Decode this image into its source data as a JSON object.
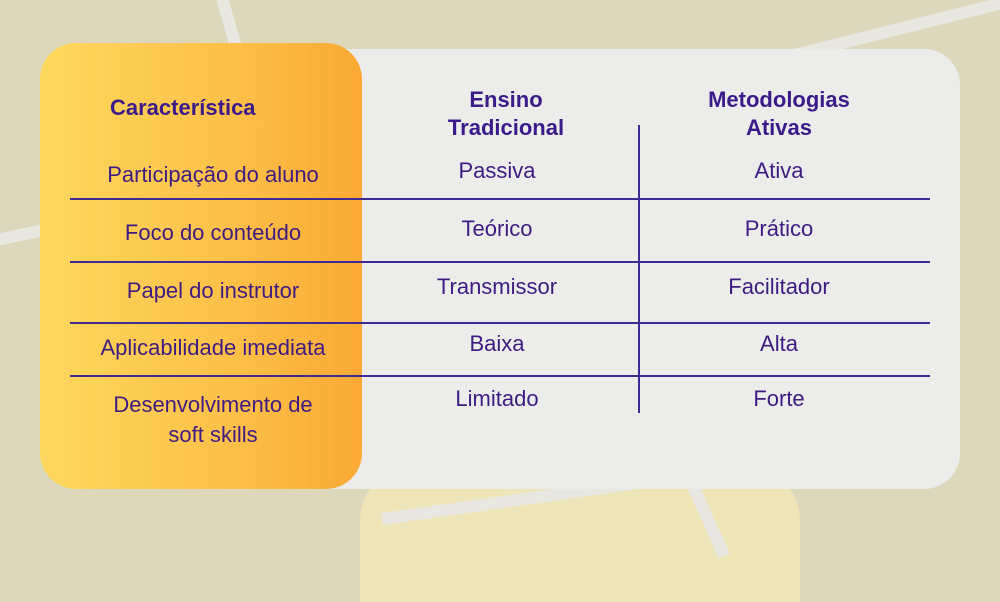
{
  "chart_data": {
    "type": "table",
    "columns": [
      "Característica",
      "Ensino Tradicional",
      "Metodologias Ativas"
    ],
    "rows": [
      [
        "Participação do aluno",
        "Passiva",
        "Ativa"
      ],
      [
        "Foco do conteúdo",
        "Teórico",
        "Prático"
      ],
      [
        "Papel do instrutor",
        "Transmissor",
        "Facilitador"
      ],
      [
        "Aplicabilidade imediata",
        "Baixa",
        "Alta"
      ],
      [
        "Desenvolvimento de soft skills",
        "Limitado",
        "Forte"
      ]
    ]
  },
  "colors": {
    "background": "#ddd8bb",
    "card": "#ececeb",
    "highlight_gradient_start": "#fdd85c",
    "highlight_gradient_end": "#faaa35",
    "text": "#3e1b82",
    "lines": "#3e2a92"
  }
}
